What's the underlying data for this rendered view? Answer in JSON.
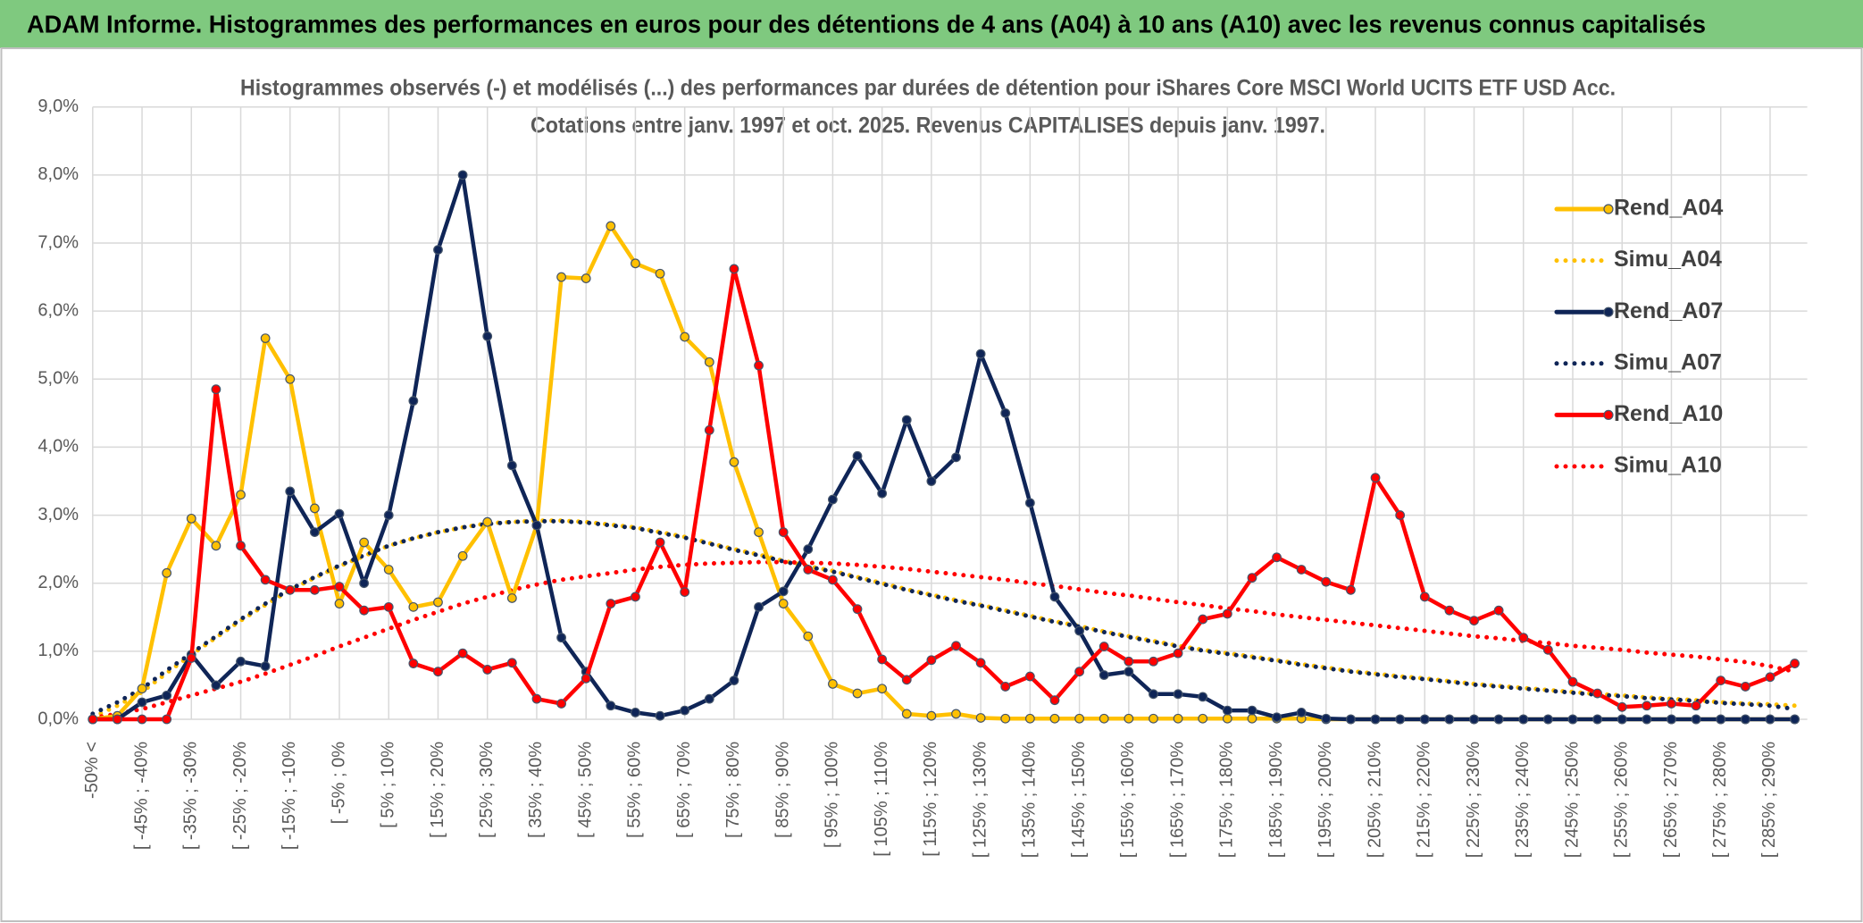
{
  "chart_data": {
    "type": "line",
    "title": "ADAM Informe. Histogrammes des performances en euros pour des détentions de 4 ans (A04) à 10 ans (A10) avec les revenus connus capitalisés",
    "subtitle": [
      "Histogrammes observés (-) et modélisés (...) des performances par durées de détention pour iShares Core MSCI World UCITS ETF USD Acc.",
      "Cotations entre janv. 1997 et oct. 2025. Revenus CAPITALISES depuis janv. 1997."
    ],
    "categories": [
      "-50% <",
      null,
      "[ -45% ; -40%",
      null,
      "[ -35% ; -30%",
      null,
      "[ -25% ; -20%",
      null,
      "[ -15% ; -10%",
      null,
      "[ -5% ; 0%",
      null,
      "[ 5% ; 10%",
      null,
      "[ 15% ; 20%",
      null,
      "[ 25% ; 30%",
      null,
      "[ 35% ; 40%",
      null,
      "[ 45% ; 50%",
      null,
      "[ 55% ; 60%",
      null,
      "[ 65% ; 70%",
      null,
      "[ 75% ; 80%",
      null,
      "[ 85% ; 90%",
      null,
      "[ 95% ; 100%",
      null,
      "[ 105% ; 110%",
      null,
      "[ 115% ; 120%",
      null,
      "[ 125% ; 130%",
      null,
      "[ 135% ; 140%",
      null,
      "[ 145% ; 150%",
      null,
      "[ 155% ; 160%",
      null,
      "[ 165% ; 170%",
      null,
      "[ 175% ; 180%",
      null,
      "[ 185% ; 190%",
      null,
      "[ 195% ; 200%",
      null,
      "[ 205% ; 210%",
      null,
      "[ 215% ; 220%",
      null,
      "[ 225% ; 230%",
      null,
      "[ 235% ; 240%",
      null,
      "[ 245% ; 250%",
      null,
      "[ 255% ; 260%",
      null,
      "[ 265% ; 270%",
      null,
      "[ 275% ; 280%",
      null,
      "[ 285% ; 290%",
      null
    ],
    "ylim": [
      0,
      9
    ],
    "yticks": [
      {
        "value": 0,
        "label": "0,0%"
      },
      {
        "value": 1,
        "label": "1,0%"
      },
      {
        "value": 2,
        "label": "2,0%"
      },
      {
        "value": 3,
        "label": "3,0%"
      },
      {
        "value": 4,
        "label": "4,0%"
      },
      {
        "value": 5,
        "label": "5,0%"
      },
      {
        "value": 6,
        "label": "6,0%"
      },
      {
        "value": 7,
        "label": "7,0%"
      },
      {
        "value": 8,
        "label": "8,0%"
      },
      {
        "value": 9,
        "label": "9,0%"
      }
    ],
    "grid": true,
    "legend": "right",
    "series": [
      {
        "name": "Rend_A04",
        "color": "#ffc000",
        "line_style": "solid",
        "values": [
          0,
          0.05,
          0.45,
          2.15,
          2.95,
          2.55,
          3.3,
          5.6,
          5.0,
          3.1,
          1.7,
          2.6,
          2.2,
          1.65,
          1.72,
          2.4,
          2.9,
          1.78,
          2.85,
          6.5,
          6.48,
          7.25,
          6.7,
          6.55,
          5.62,
          5.25,
          3.78,
          2.75,
          1.7,
          1.22,
          0.52,
          0.38,
          0.45,
          0.08,
          0.05,
          0.08,
          0.02,
          0.01,
          0.01,
          0.01,
          0.01,
          0.01,
          0.01,
          0.01,
          0.01,
          0.01,
          0.01,
          0.01,
          0.01,
          0.01,
          0,
          0,
          0,
          0,
          0,
          0,
          0,
          0,
          0,
          0,
          0,
          0,
          0,
          0,
          0,
          0,
          0,
          0,
          0,
          0
        ]
      },
      {
        "name": "Simu_A04",
        "color": "#ffc000",
        "line_style": "dotted",
        "values": [
          0.03,
          0.2,
          0.4,
          0.68,
          0.95,
          1.2,
          1.45,
          1.68,
          1.9,
          2.08,
          2.25,
          2.4,
          2.55,
          2.66,
          2.75,
          2.82,
          2.88,
          2.9,
          2.92,
          2.92,
          2.9,
          2.86,
          2.82,
          2.75,
          2.68,
          2.59,
          2.5,
          2.42,
          2.33,
          2.25,
          2.18,
          2.09,
          2.0,
          1.91,
          1.83,
          1.75,
          1.68,
          1.6,
          1.52,
          1.44,
          1.37,
          1.29,
          1.22,
          1.15,
          1.08,
          1.02,
          0.97,
          0.92,
          0.87,
          0.81,
          0.76,
          0.71,
          0.67,
          0.63,
          0.6,
          0.56,
          0.52,
          0.49,
          0.46,
          0.43,
          0.4,
          0.37,
          0.35,
          0.32,
          0.3,
          0.28,
          0.25,
          0.23,
          0.22,
          0.2
        ]
      },
      {
        "name": "Rend_A07",
        "color": "#0f2557",
        "line_style": "solid",
        "values": [
          0,
          0,
          0.25,
          0.35,
          0.95,
          0.5,
          0.85,
          0.78,
          3.35,
          2.75,
          3.02,
          2.0,
          3.0,
          4.68,
          6.9,
          8.0,
          5.63,
          3.73,
          2.85,
          1.2,
          0.7,
          0.2,
          0.1,
          0.05,
          0.13,
          0.3,
          0.57,
          1.65,
          1.88,
          2.5,
          3.23,
          3.87,
          3.32,
          4.4,
          3.5,
          3.85,
          5.37,
          4.5,
          3.18,
          1.8,
          1.3,
          0.65,
          0.7,
          0.37,
          0.37,
          0.33,
          0.13,
          0.13,
          0.03,
          0.1,
          0.01,
          0,
          0,
          0,
          0,
          0,
          0,
          0,
          0,
          0,
          0,
          0,
          0,
          0,
          0,
          0,
          0,
          0,
          0,
          0
        ]
      },
      {
        "name": "Simu_A07",
        "color": "#0f2557",
        "line_style": "dotted",
        "values": [
          0.08,
          0.25,
          0.45,
          0.72,
          0.97,
          1.22,
          1.47,
          1.7,
          1.91,
          2.09,
          2.26,
          2.41,
          2.55,
          2.66,
          2.75,
          2.82,
          2.87,
          2.9,
          2.91,
          2.91,
          2.89,
          2.85,
          2.81,
          2.74,
          2.67,
          2.58,
          2.49,
          2.41,
          2.32,
          2.24,
          2.17,
          2.08,
          1.99,
          1.9,
          1.82,
          1.74,
          1.67,
          1.59,
          1.51,
          1.43,
          1.36,
          1.28,
          1.21,
          1.14,
          1.07,
          1.01,
          0.96,
          0.91,
          0.86,
          0.8,
          0.75,
          0.7,
          0.66,
          0.62,
          0.59,
          0.55,
          0.51,
          0.48,
          0.45,
          0.42,
          0.39,
          0.36,
          0.34,
          0.31,
          0.29,
          0.27,
          0.24,
          0.22,
          0.2,
          0.15
        ]
      },
      {
        "name": "Rend_A10",
        "color": "#ff0000",
        "line_style": "solid",
        "values": [
          0,
          0,
          0,
          0,
          0.9,
          4.85,
          2.55,
          2.05,
          1.9,
          1.9,
          1.95,
          1.6,
          1.65,
          0.82,
          0.7,
          0.97,
          0.73,
          0.83,
          0.3,
          0.23,
          0.6,
          1.7,
          1.8,
          2.6,
          1.87,
          4.25,
          6.62,
          5.2,
          2.75,
          2.2,
          2.05,
          1.62,
          0.88,
          0.58,
          0.87,
          1.08,
          0.83,
          0.48,
          0.63,
          0.28,
          0.7,
          1.07,
          0.85,
          0.85,
          0.97,
          1.47,
          1.55,
          2.08,
          2.38,
          2.2,
          2.02,
          1.9,
          3.55,
          3.0,
          1.8,
          1.6,
          1.45,
          1.6,
          1.2,
          1.02,
          0.55,
          0.38,
          0.18,
          0.2,
          0.23,
          0.2,
          0.57,
          0.48,
          0.62,
          0.82
        ]
      },
      {
        "name": "Simu_A10",
        "color": "#ff0000",
        "line_style": "dotted",
        "values": [
          0.02,
          0.08,
          0.15,
          0.25,
          0.35,
          0.45,
          0.55,
          0.67,
          0.8,
          0.93,
          1.07,
          1.2,
          1.33,
          1.46,
          1.58,
          1.7,
          1.8,
          1.9,
          1.98,
          2.05,
          2.1,
          2.15,
          2.2,
          2.24,
          2.27,
          2.29,
          2.3,
          2.31,
          2.31,
          2.3,
          2.29,
          2.27,
          2.24,
          2.21,
          2.17,
          2.13,
          2.09,
          2.05,
          2.0,
          1.96,
          1.91,
          1.86,
          1.82,
          1.77,
          1.72,
          1.68,
          1.63,
          1.59,
          1.54,
          1.5,
          1.46,
          1.42,
          1.38,
          1.34,
          1.3,
          1.26,
          1.22,
          1.19,
          1.15,
          1.12,
          1.08,
          1.05,
          1.02,
          0.98,
          0.95,
          0.92,
          0.88,
          0.84,
          0.78,
          0.7
        ]
      }
    ]
  }
}
